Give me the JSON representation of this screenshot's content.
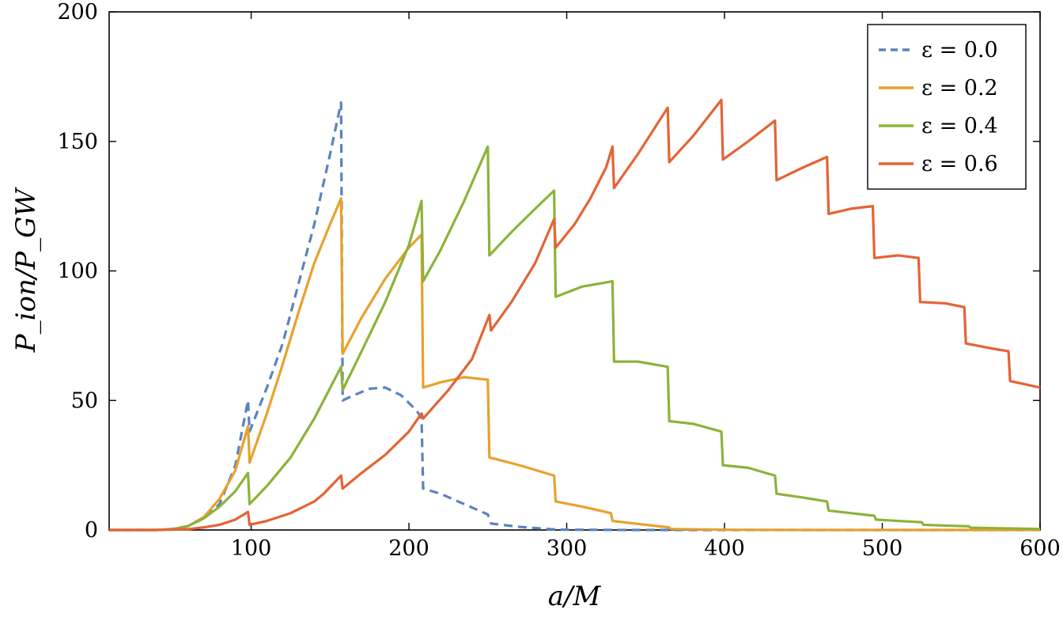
{
  "chart_data": {
    "type": "line",
    "xlabel": "a/M",
    "ylabel": "P_ion/P_GW",
    "xlim": [
      10,
      600
    ],
    "ylim": [
      0,
      200
    ],
    "xticks": [
      100,
      200,
      300,
      400,
      500,
      600
    ],
    "yticks": [
      0,
      50,
      100,
      150,
      200
    ],
    "grid": false,
    "legend_position": "top-right",
    "series": [
      {
        "name": "ε = 0.0",
        "color": "#5b83bd",
        "dash": "dashed",
        "points": [
          [
            10,
            0
          ],
          [
            40,
            0
          ],
          [
            50,
            0.4
          ],
          [
            60,
            1.5
          ],
          [
            70,
            4.5
          ],
          [
            80,
            10
          ],
          [
            90,
            25
          ],
          [
            98,
            50
          ],
          [
            99,
            38
          ],
          [
            110,
            55
          ],
          [
            120,
            72
          ],
          [
            130,
            95
          ],
          [
            140,
            118
          ],
          [
            150,
            145
          ],
          [
            157,
            165
          ],
          [
            158,
            50
          ],
          [
            165,
            52
          ],
          [
            175,
            54.5
          ],
          [
            185,
            55
          ],
          [
            195,
            52
          ],
          [
            205,
            46
          ],
          [
            208,
            43
          ],
          [
            209,
            16
          ],
          [
            220,
            14
          ],
          [
            235,
            10
          ],
          [
            250,
            6
          ],
          [
            252,
            2.5
          ],
          [
            270,
            1.2
          ],
          [
            290,
            0.3
          ],
          [
            300,
            0.1
          ],
          [
            340,
            0
          ],
          [
            600,
            0
          ]
        ]
      },
      {
        "name": "ε = 0.2",
        "color": "#e8a12c",
        "dash": "solid",
        "points": [
          [
            10,
            0
          ],
          [
            40,
            0
          ],
          [
            50,
            0.3
          ],
          [
            60,
            1.5
          ],
          [
            70,
            5
          ],
          [
            80,
            12
          ],
          [
            90,
            23
          ],
          [
            98,
            40
          ],
          [
            99,
            26
          ],
          [
            110,
            45
          ],
          [
            120,
            64
          ],
          [
            130,
            84
          ],
          [
            140,
            103
          ],
          [
            150,
            118
          ],
          [
            157,
            128
          ],
          [
            158,
            68
          ],
          [
            170,
            82
          ],
          [
            185,
            97
          ],
          [
            200,
            109
          ],
          [
            208,
            114
          ],
          [
            209,
            55
          ],
          [
            220,
            57
          ],
          [
            235,
            59
          ],
          [
            250,
            58
          ],
          [
            251,
            28
          ],
          [
            270,
            25
          ],
          [
            292,
            21
          ],
          [
            293,
            11
          ],
          [
            310,
            9
          ],
          [
            328,
            6.5
          ],
          [
            329,
            3.5
          ],
          [
            350,
            2
          ],
          [
            365,
            1
          ],
          [
            366,
            0.4
          ],
          [
            400,
            0.1
          ],
          [
            450,
            0
          ],
          [
            600,
            0
          ]
        ]
      },
      {
        "name": "ε = 0.4",
        "color": "#8cb339",
        "dash": "solid",
        "points": [
          [
            10,
            0
          ],
          [
            40,
            0
          ],
          [
            50,
            0.3
          ],
          [
            60,
            1.5
          ],
          [
            70,
            4.5
          ],
          [
            80,
            9
          ],
          [
            90,
            15
          ],
          [
            98,
            22
          ],
          [
            99,
            10
          ],
          [
            110,
            17
          ],
          [
            125,
            28
          ],
          [
            140,
            43
          ],
          [
            157,
            63
          ],
          [
            158,
            54
          ],
          [
            170,
            69
          ],
          [
            185,
            88
          ],
          [
            200,
            110
          ],
          [
            208,
            127
          ],
          [
            209,
            96
          ],
          [
            220,
            108
          ],
          [
            235,
            127
          ],
          [
            250,
            148
          ],
          [
            251,
            106
          ],
          [
            265,
            115
          ],
          [
            280,
            124
          ],
          [
            292,
            131
          ],
          [
            293,
            90
          ],
          [
            310,
            94
          ],
          [
            329,
            96
          ],
          [
            330,
            65
          ],
          [
            345,
            65
          ],
          [
            364,
            63
          ],
          [
            365,
            42
          ],
          [
            380,
            41
          ],
          [
            398,
            38
          ],
          [
            399,
            25
          ],
          [
            415,
            24
          ],
          [
            432,
            21
          ],
          [
            433,
            14
          ],
          [
            450,
            12.5
          ],
          [
            465,
            11
          ],
          [
            466,
            7.5
          ],
          [
            480,
            6.5
          ],
          [
            495,
            5.5
          ],
          [
            496,
            4
          ],
          [
            510,
            3.5
          ],
          [
            525,
            3
          ],
          [
            526,
            2
          ],
          [
            540,
            1.7
          ],
          [
            555,
            1.4
          ],
          [
            556,
            0.9
          ],
          [
            580,
            0.6
          ],
          [
            600,
            0.4
          ]
        ]
      },
      {
        "name": "ε = 0.6",
        "color": "#e46335",
        "dash": "solid",
        "points": [
          [
            10,
            0
          ],
          [
            40,
            0
          ],
          [
            60,
            0.3
          ],
          [
            70,
            1
          ],
          [
            80,
            2
          ],
          [
            90,
            4
          ],
          [
            98,
            7
          ],
          [
            99,
            2
          ],
          [
            110,
            3.5
          ],
          [
            125,
            6.5
          ],
          [
            140,
            11
          ],
          [
            146,
            14
          ],
          [
            157,
            21
          ],
          [
            158,
            16
          ],
          [
            170,
            22
          ],
          [
            185,
            29
          ],
          [
            200,
            38
          ],
          [
            208,
            45
          ],
          [
            209,
            43
          ],
          [
            225,
            54
          ],
          [
            240,
            66
          ],
          [
            251,
            83
          ],
          [
            252,
            77
          ],
          [
            265,
            88
          ],
          [
            280,
            103
          ],
          [
            292,
            120
          ],
          [
            293,
            109
          ],
          [
            305,
            118
          ],
          [
            315,
            128
          ],
          [
            325,
            140
          ],
          [
            329,
            148
          ],
          [
            330,
            132
          ],
          [
            345,
            145
          ],
          [
            364,
            163
          ],
          [
            365,
            142
          ],
          [
            380,
            152
          ],
          [
            398,
            166
          ],
          [
            399,
            143
          ],
          [
            415,
            150
          ],
          [
            432,
            158
          ],
          [
            433,
            135
          ],
          [
            450,
            140
          ],
          [
            465,
            144
          ],
          [
            466,
            122
          ],
          [
            480,
            124
          ],
          [
            494,
            125
          ],
          [
            495,
            105
          ],
          [
            510,
            106
          ],
          [
            523,
            105
          ],
          [
            524,
            88
          ],
          [
            540,
            87.5
          ],
          [
            552,
            86
          ],
          [
            553,
            72
          ],
          [
            570,
            70
          ],
          [
            580,
            69
          ],
          [
            581,
            57.5
          ],
          [
            600,
            55
          ]
        ]
      }
    ]
  }
}
